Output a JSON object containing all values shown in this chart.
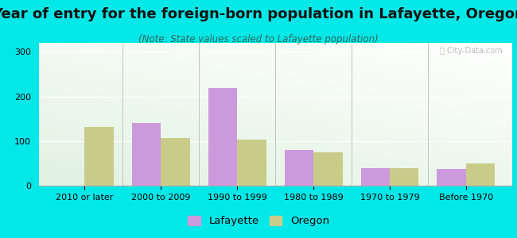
{
  "title": "Year of entry for the foreign-born population in Lafayette, Oregon",
  "subtitle": "(Note: State values scaled to Lafayette population)",
  "categories": [
    "2010 or later",
    "2000 to 2009",
    "1990 to 1999",
    "1980 to 1989",
    "1970 to 1979",
    "Before 1970"
  ],
  "lafayette_values": [
    0,
    140,
    218,
    80,
    40,
    37
  ],
  "oregon_values": [
    132,
    107,
    103,
    75,
    40,
    50
  ],
  "lafayette_color": "#cc99dd",
  "oregon_color": "#c8cc88",
  "ylim": [
    0,
    320
  ],
  "yticks": [
    0,
    100,
    200,
    300
  ],
  "bar_width": 0.38,
  "background_color": "#00e8e8",
  "legend_lafayette": "Lafayette",
  "legend_oregon": "Oregon",
  "title_fontsize": 13,
  "subtitle_fontsize": 8.5,
  "tick_fontsize": 8,
  "legend_fontsize": 9.5
}
